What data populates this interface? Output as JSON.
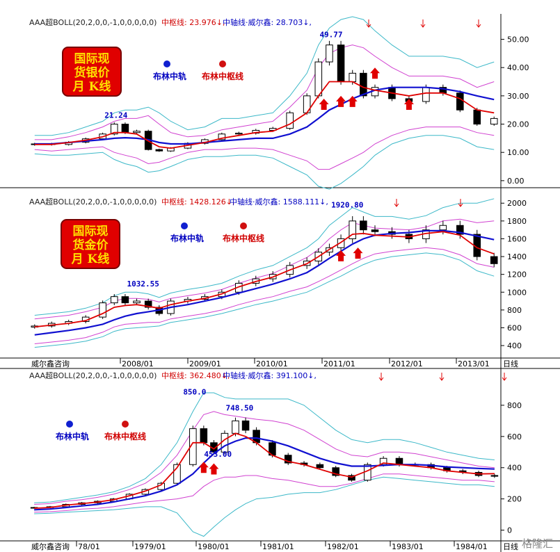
{
  "watermark": "格隆汇",
  "footer_brand": "威尔鑫咨询",
  "period_label": "日线",
  "colors": {
    "candle_body": "#000000",
    "upper_outer": "#3bb8c8",
    "upper_inner": "#d040d0",
    "mid_line": "#1010d0",
    "pivot_line": "#e00000",
    "arrow": "#e00000",
    "axis": "#000000",
    "header_red": "#d00000",
    "header_blue": "#0000c0"
  },
  "panels": [
    {
      "header": {
        "indicator": "AAA超BOLL(20,2,0,0,-1,0,0,0,0,0)",
        "pivot_label": "中枢线: 23.976",
        "mid_label": "中轴线·威尔鑫: 28.703"
      },
      "badge_lines": [
        "国际现",
        "货银价",
        "月 K线"
      ],
      "legend": {
        "mid": "布林中轨",
        "pivot": "布林中枢线"
      },
      "peak_labels": [
        "21.24",
        "49.77"
      ],
      "y_ticks": [
        "0.00",
        "10.00",
        "20.00",
        "30.00",
        "40.00",
        "50.00"
      ],
      "x_ticks": []
    },
    {
      "header": {
        "indicator": "AAA超BOLL(20,2,0,0,-1,0,0,0,0,0)",
        "pivot_label": "中枢线: 1428.126",
        "mid_label": "中轴线·威尔鑫: 1588.111"
      },
      "badge_lines": [
        "国际现",
        "货金价",
        "月 K线"
      ],
      "legend": {
        "mid": "布林中轨",
        "pivot": "布林中枢线"
      },
      "peak_labels": [
        "1032.55",
        "1920.80"
      ],
      "y_ticks": [
        "400",
        "600",
        "800",
        "1000",
        "1200",
        "1400",
        "1600",
        "1800",
        "2000"
      ],
      "x_ticks": [
        "2008/01",
        "2009/01",
        "2010/01",
        "2011/01",
        "2012/01",
        "2013/01"
      ]
    },
    {
      "header": {
        "indicator": "AAA超BOLL(20,2,0,0,-1,0,0,0,0,0)",
        "pivot_label": "中枢线: 362.480",
        "mid_label": "中轴线·威尔鑫: 391.100"
      },
      "badge_lines": [],
      "legend": {
        "mid": "布林中轨",
        "pivot": "布林中枢线"
      },
      "peak_labels": [
        "850.0",
        "748.50",
        "453.00"
      ],
      "y_ticks": [
        "0",
        "200",
        "400",
        "600",
        "800"
      ],
      "x_ticks": [
        "78/01",
        "1979/01",
        "1980/01",
        "1981/01",
        "1982/01",
        "1983/01",
        "1984/01"
      ]
    }
  ],
  "chart_data": [
    {
      "type": "candlestick",
      "title": "国际现货银价 月K线",
      "ylim": [
        -2,
        58
      ],
      "x": [
        2007.0,
        2007.25,
        2007.5,
        2007.75,
        2008.0,
        2008.17,
        2008.33,
        2008.5,
        2008.67,
        2008.83,
        2009.0,
        2009.25,
        2009.5,
        2009.75,
        2010.0,
        2010.25,
        2010.5,
        2010.75,
        2011.0,
        2011.17,
        2011.33,
        2011.5,
        2011.67,
        2011.83,
        2012.0,
        2012.25,
        2012.5,
        2012.75,
        2013.0,
        2013.25,
        2013.5,
        2013.75
      ],
      "close": [
        13.0,
        12.8,
        13.6,
        14.8,
        16.5,
        20.0,
        17.0,
        17.5,
        11.0,
        10.5,
        11.5,
        13.2,
        14.5,
        16.5,
        16.8,
        17.8,
        18.5,
        24.0,
        30.0,
        42.0,
        48.0,
        35.0,
        38.0,
        30.0,
        33.0,
        29.0,
        28.0,
        33.0,
        31.0,
        25.0,
        20.0,
        22.0
      ],
      "upper_outer": [
        16,
        16,
        17,
        19,
        21,
        24,
        25,
        25,
        26,
        24,
        21,
        18,
        19,
        22,
        22,
        23,
        24,
        30,
        38,
        48,
        54,
        57,
        58,
        57,
        53,
        48,
        44,
        44,
        44,
        43,
        40,
        42
      ],
      "upper_inner": [
        14.5,
        14.5,
        15.5,
        17,
        19,
        21,
        22,
        22,
        23,
        20,
        17,
        15.5,
        16,
        18,
        19,
        20,
        21,
        26,
        32,
        40,
        45,
        47,
        48,
        47,
        44,
        40,
        37,
        37,
        37,
        36,
        33,
        35
      ],
      "mid": [
        13.0,
        13.0,
        13.5,
        14.0,
        14.5,
        15.0,
        15.2,
        15.0,
        14.5,
        13.5,
        13.0,
        13.0,
        13.5,
        14.0,
        14.5,
        15.0,
        15.0,
        16.5,
        19.0,
        22.0,
        25.0,
        27.0,
        29.0,
        30.5,
        32.0,
        33.0,
        33.0,
        33.0,
        32.5,
        31.5,
        30.0,
        28.7
      ],
      "pivot": [
        12.8,
        12.8,
        13.5,
        14.3,
        15.5,
        17.0,
        17.0,
        16.5,
        14.0,
        12.0,
        11.5,
        12.5,
        13.5,
        15.0,
        16.0,
        17.0,
        17.5,
        20.0,
        24.0,
        30.0,
        35.0,
        35.0,
        35.0,
        33.0,
        32.0,
        31.0,
        30.0,
        31.0,
        31.0,
        29.0,
        25.0,
        24.0
      ],
      "lower_inner": [
        11,
        10.5,
        11,
        11.5,
        12,
        10,
        9,
        8,
        6,
        6.5,
        8,
        10,
        11,
        11,
        11.5,
        11.5,
        11,
        9,
        7,
        4,
        4,
        6,
        8,
        10,
        13,
        16,
        18,
        19,
        19,
        19,
        17,
        16
      ],
      "lower_outer": [
        9.5,
        9,
        9,
        9.5,
        10,
        7.5,
        6,
        5,
        3,
        3.5,
        5,
        7.5,
        8.5,
        8.5,
        9,
        9,
        8,
        5,
        2,
        -2,
        -3,
        -1,
        2,
        5,
        9,
        13,
        15,
        16,
        16,
        15,
        12,
        11
      ],
      "peak_labels": [
        "21.24",
        "49.77"
      ]
    },
    {
      "type": "candlestick",
      "title": "国际现货金价 月K线",
      "ylim": [
        260,
        2080
      ],
      "x": [
        2007.0,
        2007.25,
        2007.5,
        2007.75,
        2008.0,
        2008.17,
        2008.33,
        2008.5,
        2008.67,
        2008.83,
        2009.0,
        2009.25,
        2009.5,
        2009.75,
        2010.0,
        2010.25,
        2010.5,
        2010.75,
        2011.0,
        2011.17,
        2011.33,
        2011.5,
        2011.67,
        2011.83,
        2012.0,
        2012.25,
        2012.5,
        2012.75,
        2013.0,
        2013.25,
        2013.5,
        2013.75
      ],
      "close": [
        620,
        650,
        670,
        720,
        880,
        950,
        880,
        900,
        830,
        760,
        900,
        920,
        950,
        1000,
        1100,
        1150,
        1200,
        1300,
        1350,
        1450,
        1500,
        1600,
        1800,
        1700,
        1680,
        1650,
        1600,
        1700,
        1750,
        1650,
        1400,
        1320
      ],
      "upper_outer": [
        740,
        760,
        780,
        820,
        880,
        960,
        1000,
        1000,
        980,
        940,
        990,
        1030,
        1060,
        1100,
        1180,
        1250,
        1300,
        1400,
        1500,
        1600,
        1750,
        1850,
        1950,
        1900,
        1850,
        1850,
        1820,
        1860,
        1950,
        2000,
        2000,
        2050
      ],
      "upper_inner": [
        700,
        720,
        740,
        780,
        830,
        900,
        930,
        930,
        920,
        890,
        930,
        960,
        990,
        1030,
        1100,
        1160,
        1210,
        1300,
        1390,
        1480,
        1600,
        1700,
        1780,
        1750,
        1720,
        1710,
        1700,
        1730,
        1800,
        1820,
        1780,
        1800
      ],
      "mid": [
        520,
        545,
        570,
        600,
        640,
        690,
        730,
        760,
        780,
        800,
        830,
        860,
        900,
        940,
        990,
        1040,
        1090,
        1150,
        1220,
        1300,
        1380,
        1460,
        1540,
        1600,
        1640,
        1660,
        1670,
        1690,
        1690,
        1670,
        1630,
        1590
      ],
      "pivot": [
        610,
        630,
        650,
        680,
        760,
        830,
        850,
        860,
        840,
        820,
        860,
        900,
        930,
        980,
        1060,
        1120,
        1170,
        1250,
        1320,
        1400,
        1480,
        1560,
        1650,
        1660,
        1640,
        1630,
        1620,
        1660,
        1680,
        1640,
        1500,
        1430
      ],
      "lower_inner": [
        420,
        440,
        460,
        490,
        550,
        610,
        640,
        650,
        660,
        660,
        700,
        730,
        760,
        800,
        860,
        910,
        950,
        1010,
        1060,
        1120,
        1180,
        1250,
        1320,
        1380,
        1430,
        1460,
        1480,
        1500,
        1480,
        1420,
        1320,
        1280
      ],
      "lower_outer": [
        380,
        400,
        420,
        450,
        500,
        560,
        590,
        600,
        610,
        620,
        660,
        690,
        720,
        760,
        810,
        860,
        900,
        950,
        1000,
        1060,
        1120,
        1180,
        1250,
        1310,
        1360,
        1400,
        1420,
        1440,
        1420,
        1360,
        1240,
        1180
      ],
      "peak_labels": [
        "1032.55",
        "1920.80"
      ],
      "x_ticks": [
        "2008/01",
        "2009/01",
        "2010/01",
        "2011/01",
        "2012/01",
        "2013/01"
      ]
    },
    {
      "type": "candlestick",
      "title": "",
      "ylim": [
        -60,
        960
      ],
      "x": [
        1977.5,
        1977.75,
        1978.0,
        1978.25,
        1978.5,
        1978.75,
        1979.0,
        1979.25,
        1979.5,
        1979.75,
        1980.0,
        1980.17,
        1980.33,
        1980.5,
        1980.67,
        1980.83,
        1981.0,
        1981.25,
        1981.5,
        1981.75,
        1982.0,
        1982.25,
        1982.5,
        1982.75,
        1983.0,
        1983.25,
        1983.5,
        1983.75,
        1984.0,
        1984.25,
        1984.5,
        1984.75
      ],
      "close": [
        145,
        150,
        165,
        175,
        185,
        200,
        230,
        260,
        300,
        420,
        650,
        560,
        500,
        620,
        700,
        640,
        560,
        480,
        430,
        420,
        400,
        350,
        320,
        420,
        460,
        420,
        420,
        400,
        380,
        370,
        350,
        345
      ],
      "upper_outer": [
        175,
        180,
        195,
        210,
        225,
        245,
        280,
        330,
        420,
        560,
        760,
        880,
        880,
        850,
        840,
        840,
        840,
        840,
        840,
        800,
        720,
        640,
        580,
        560,
        580,
        580,
        560,
        530,
        500,
        480,
        460,
        450
      ],
      "upper_inner": [
        165,
        170,
        185,
        195,
        210,
        230,
        260,
        300,
        370,
        480,
        640,
        740,
        760,
        740,
        730,
        720,
        710,
        700,
        680,
        640,
        580,
        520,
        480,
        470,
        500,
        500,
        490,
        470,
        450,
        430,
        410,
        400
      ],
      "mid": [
        130,
        135,
        145,
        155,
        165,
        180,
        200,
        220,
        250,
        290,
        360,
        430,
        490,
        540,
        570,
        590,
        590,
        570,
        540,
        500,
        460,
        430,
        410,
        410,
        415,
        420,
        420,
        415,
        405,
        400,
        395,
        391
      ],
      "pivot": [
        140,
        145,
        160,
        170,
        180,
        195,
        220,
        250,
        290,
        400,
        560,
        560,
        520,
        580,
        620,
        600,
        560,
        480,
        440,
        420,
        390,
        360,
        340,
        380,
        430,
        420,
        410,
        400,
        380,
        370,
        360,
        362
      ],
      "lower_inner": [
        115,
        118,
        125,
        135,
        140,
        150,
        165,
        180,
        190,
        200,
        220,
        280,
        320,
        340,
        340,
        350,
        350,
        330,
        320,
        300,
        280,
        280,
        300,
        330,
        360,
        360,
        350,
        340,
        330,
        320,
        320,
        310
      ],
      "lower_outer": [
        105,
        108,
        115,
        120,
        125,
        130,
        140,
        150,
        150,
        110,
        -10,
        -40,
        20,
        80,
        130,
        170,
        200,
        210,
        230,
        240,
        240,
        260,
        290,
        320,
        340,
        330,
        320,
        310,
        300,
        290,
        290,
        280
      ],
      "peak_labels": [
        "850.0",
        "748.50",
        "453.00"
      ],
      "x_ticks": [
        "78/01",
        "1979/01",
        "1980/01",
        "1981/01",
        "1982/01",
        "1983/01",
        "1984/01"
      ]
    }
  ]
}
